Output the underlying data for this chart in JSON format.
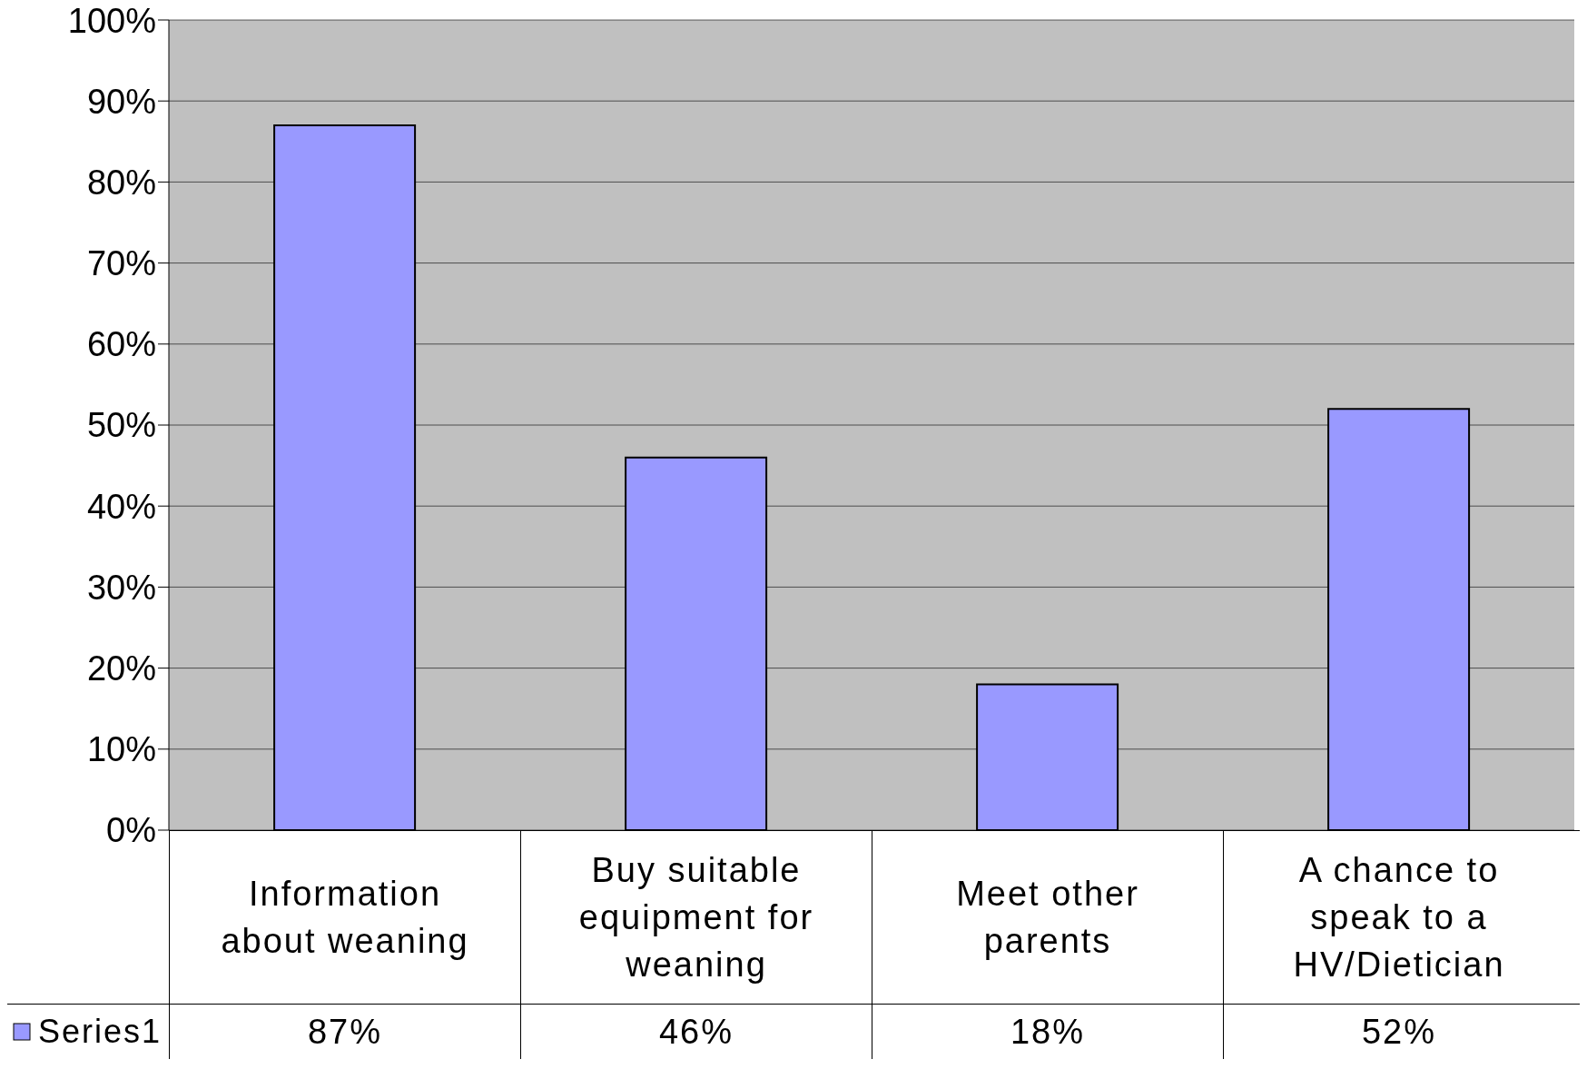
{
  "chart_data": {
    "type": "bar",
    "categories": [
      "Information about weaning",
      "Buy suitable equipment for weaning",
      "Meet other parents",
      "A chance to speak to a HV/Dietician"
    ],
    "series": [
      {
        "name": "Series1",
        "color": "#9999ff",
        "values": [
          87,
          46,
          18,
          52
        ],
        "value_labels": [
          "87%",
          "46%",
          "18%",
          "52%"
        ]
      }
    ],
    "ylim": [
      0,
      100
    ],
    "yticks": [
      {
        "value": 0,
        "label": "0%"
      },
      {
        "value": 10,
        "label": "10%"
      },
      {
        "value": 20,
        "label": "20%"
      },
      {
        "value": 30,
        "label": "30%"
      },
      {
        "value": 40,
        "label": "40%"
      },
      {
        "value": 50,
        "label": "50%"
      },
      {
        "value": 60,
        "label": "60%"
      },
      {
        "value": 70,
        "label": "70%"
      },
      {
        "value": 80,
        "label": "80%"
      },
      {
        "value": 90,
        "label": "90%"
      },
      {
        "value": 100,
        "label": "100%"
      }
    ],
    "grid": "y"
  }
}
